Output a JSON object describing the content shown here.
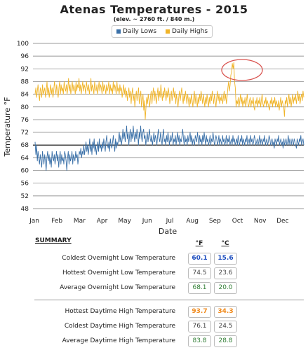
{
  "chart_data": {
    "type": "line",
    "title": "Atenas Temperatures - 2015",
    "subtitle": "(elev. ~ 2760 ft. / 840 m.)",
    "xlabel": "Date",
    "ylabel": "Temperature °F",
    "ylim": [
      48,
      100
    ],
    "yticks": [
      48,
      52,
      56,
      60,
      64,
      68,
      72,
      76,
      80,
      84,
      88,
      92,
      96,
      100
    ],
    "xticks": [
      "Jan",
      "Feb",
      "Mar",
      "Apr",
      "May",
      "Jun",
      "Jul",
      "Aug",
      "Sep",
      "Oct",
      "Nov",
      "Dec"
    ],
    "grid": "horizontal",
    "legend_position": "top-center",
    "series": [
      {
        "name": "Daily Lows",
        "color": "#3a70a8",
        "values": [
          69,
          65,
          68,
          63,
          66,
          64,
          62,
          65,
          63,
          61,
          66,
          64,
          62,
          65,
          63,
          60,
          64,
          66,
          63,
          65,
          62,
          64,
          61,
          66,
          64,
          63,
          65,
          62,
          64,
          66,
          63,
          65,
          61,
          64,
          66,
          62,
          65,
          63,
          64,
          62,
          66,
          65,
          63,
          60,
          64,
          66,
          62,
          65,
          63,
          64,
          66,
          62,
          65,
          64,
          63,
          66,
          64,
          65,
          62,
          64,
          66,
          65,
          67,
          64,
          66,
          65,
          68,
          65,
          67,
          69,
          66,
          68,
          65,
          67,
          70,
          66,
          68,
          65,
          69,
          67,
          70,
          66,
          68,
          65,
          67,
          69,
          66,
          70,
          67,
          68,
          66,
          69,
          67,
          70,
          68,
          66,
          69,
          71,
          68,
          67,
          69,
          66,
          70,
          68,
          67,
          69,
          71,
          68,
          66,
          70,
          67,
          69,
          68,
          70,
          72,
          69,
          71,
          68,
          70,
          73,
          70,
          72,
          69,
          71,
          74,
          70,
          72,
          68,
          71,
          73,
          69,
          72,
          70,
          74,
          71,
          69,
          72,
          70,
          73,
          71,
          68,
          72,
          70,
          74,
          71,
          69,
          72,
          73,
          70,
          71,
          68,
          70,
          72,
          69,
          71,
          73,
          70,
          69,
          71,
          68,
          70,
          72,
          69,
          71,
          70,
          68,
          71,
          73,
          70,
          69,
          72,
          70,
          68,
          71,
          73,
          69,
          70,
          68,
          71,
          69,
          72,
          70,
          68,
          71,
          69,
          70,
          72,
          68,
          70,
          69,
          71,
          68,
          70,
          72,
          69,
          71,
          68,
          70,
          69,
          71,
          73,
          70,
          68,
          71,
          69,
          70,
          68,
          71,
          69,
          70,
          72,
          69,
          71,
          68,
          70,
          69,
          68,
          71,
          70,
          69,
          72,
          70,
          68,
          71,
          69,
          70,
          68,
          71,
          69,
          72,
          70,
          68,
          71,
          69,
          70,
          68,
          69,
          71,
          68,
          70,
          69,
          72,
          70,
          68,
          69,
          71,
          70,
          68,
          69,
          71,
          68,
          70,
          69,
          68,
          71,
          69,
          70,
          68,
          69,
          71,
          68,
          70,
          69,
          71,
          68,
          69,
          70,
          68,
          71,
          69,
          70,
          68,
          69,
          70,
          68,
          71,
          69,
          68,
          70,
          69,
          71,
          68,
          70,
          69,
          68,
          70,
          69,
          71,
          68,
          69,
          70,
          68,
          71,
          69,
          70,
          68,
          69,
          71,
          70,
          68,
          69,
          70,
          68,
          69,
          71,
          68,
          70,
          69,
          68,
          70,
          69,
          71,
          68,
          69,
          70,
          68,
          69,
          71,
          70,
          68,
          69,
          70,
          68,
          69,
          67,
          70,
          69,
          68,
          70,
          69,
          71,
          68,
          69,
          70,
          68,
          69,
          67,
          70,
          68,
          69,
          70,
          68,
          69,
          71,
          68,
          70,
          69,
          68,
          70,
          69,
          68,
          70,
          69,
          68,
          67,
          70,
          69,
          68,
          70,
          69,
          71,
          68,
          69,
          70,
          68
        ]
      },
      {
        "name": "Daily Highs",
        "color": "#f0b429",
        "values": [
          84,
          86,
          83,
          85,
          87,
          84,
          82,
          86,
          85,
          83,
          87,
          84,
          85,
          86,
          83,
          85,
          88,
          84,
          86,
          83,
          85,
          87,
          84,
          86,
          83,
          85,
          88,
          86,
          84,
          87,
          85,
          83,
          86,
          88,
          84,
          87,
          85,
          86,
          84,
          88,
          86,
          85,
          87,
          84,
          86,
          89,
          85,
          87,
          84,
          86,
          88,
          85,
          87,
          86,
          84,
          88,
          85,
          87,
          86,
          89,
          85,
          87,
          84,
          86,
          88,
          85,
          87,
          86,
          84,
          88,
          86,
          85,
          87,
          84,
          86,
          89,
          85,
          87,
          86,
          84,
          88,
          86,
          85,
          87,
          84,
          86,
          88,
          85,
          87,
          86,
          84,
          88,
          85,
          87,
          86,
          84,
          87,
          85,
          86,
          88,
          84,
          87,
          85,
          86,
          84,
          88,
          85,
          87,
          86,
          84,
          88,
          85,
          86,
          84,
          87,
          85,
          86,
          83,
          85,
          87,
          84,
          86,
          83,
          85,
          82,
          84,
          86,
          83,
          85,
          81,
          84,
          86,
          82,
          84,
          80,
          83,
          85,
          82,
          84,
          86,
          81,
          83,
          85,
          80,
          82,
          84,
          79,
          82,
          76,
          80,
          83,
          81,
          84,
          82,
          80,
          83,
          85,
          81,
          84,
          86,
          82,
          85,
          83,
          81,
          84,
          86,
          82,
          85,
          83,
          87,
          84,
          82,
          85,
          83,
          86,
          84,
          82,
          85,
          83,
          86,
          84,
          81,
          83,
          85,
          82,
          84,
          86,
          83,
          85,
          81,
          84,
          82,
          80,
          83,
          85,
          82,
          84,
          86,
          83,
          81,
          84,
          82,
          85,
          83,
          81,
          84,
          82,
          80,
          83,
          81,
          84,
          82,
          80,
          83,
          85,
          81,
          84,
          82,
          80,
          83,
          81,
          84,
          82,
          85,
          83,
          81,
          84,
          82,
          80,
          83,
          81,
          84,
          82,
          80,
          83,
          81,
          84,
          82,
          85,
          83,
          81,
          84,
          82,
          80,
          83,
          85,
          82,
          84,
          81,
          83,
          82,
          84,
          81,
          83,
          85,
          82,
          84,
          81,
          83,
          86,
          88,
          85,
          87,
          90,
          91,
          93.7,
          92,
          94,
          88,
          86,
          80,
          82,
          81,
          83,
          80,
          82,
          84,
          81,
          83,
          80,
          82,
          81,
          83,
          80,
          82,
          84,
          81,
          80,
          82,
          83,
          80,
          82,
          81,
          83,
          80,
          79,
          82,
          81,
          83,
          80,
          82,
          81,
          83,
          80,
          82,
          84,
          81,
          80,
          82,
          81,
          83,
          80,
          82,
          81,
          80,
          79,
          82,
          81,
          83,
          80,
          82,
          81,
          83,
          80,
          82,
          81,
          80,
          82,
          79,
          81,
          83,
          80,
          82,
          81,
          80,
          77,
          82,
          81,
          83,
          80,
          82,
          84,
          81,
          83,
          80,
          82,
          84,
          81,
          83,
          82,
          84,
          81,
          83,
          85,
          82,
          84,
          81,
          83,
          84,
          82,
          85,
          83
        ]
      }
    ]
  },
  "summary": {
    "title": "SUMMARY",
    "unit_f": "°F",
    "unit_c": "°C",
    "rows": [
      {
        "label": "Coldest Overnight Low Temperature",
        "f": "60.1",
        "c": "15.6",
        "color": "#1f4fbf"
      },
      {
        "label": "Hottest Overnight Low Temperature",
        "f": "74.5",
        "c": "23.6",
        "color": "#444444"
      },
      {
        "label": "Average Overnight Low Temperature",
        "f": "68.1",
        "c": "20.0",
        "color": "#2e7d32"
      },
      {
        "label": "Hottest Daytime High Temperature",
        "f": "93.7",
        "c": "34.3",
        "color": "#f08a1c"
      },
      {
        "label": "Coldest Daytime High Temperature",
        "f": "76.1",
        "c": "24.5",
        "color": "#444444"
      },
      {
        "label": "Average Daytime High Temperature",
        "f": "83.8",
        "c": "28.8",
        "color": "#2e7d32"
      }
    ]
  }
}
